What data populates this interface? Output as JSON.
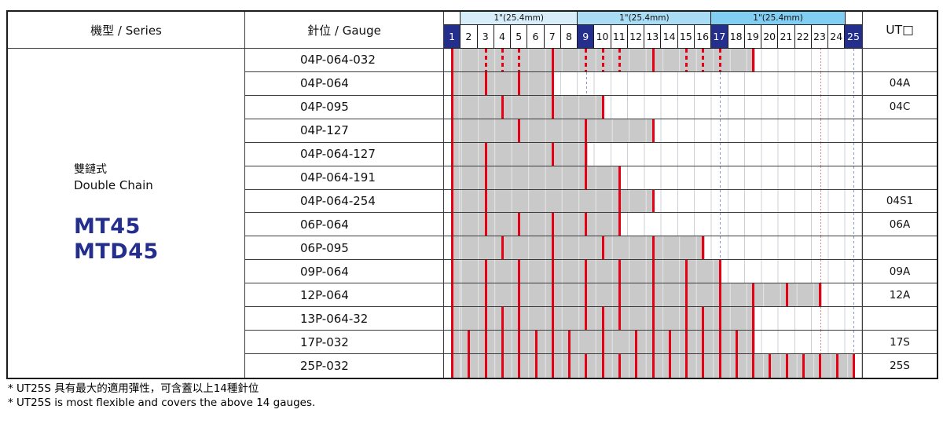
{
  "colors": {
    "navy": "#242e8c",
    "red": "#e60014",
    "bar_gray": "#c9c9c9",
    "guide_blue": "#8a94d0",
    "guide_red": "#dc8a8a",
    "gridline": "#ccd1d8",
    "band_light": "#d7eefa",
    "band_mid": "#a9dcf5",
    "band_dark": "#82cef2"
  },
  "table": {
    "series_header": "機型 / Series",
    "gauge_header": "針位 / Gauge",
    "ut_header": "UT□",
    "series_cell": {
      "type_zh": "雙鏈式",
      "type_en": "Double Chain",
      "model1": "MT45",
      "model2": "MTD45"
    }
  },
  "chart_data": {
    "type": "table",
    "title": "Needle gauge position chart",
    "scale": {
      "numbers": [
        "1",
        "2",
        "3",
        "4",
        "5",
        "6",
        "7",
        "8",
        "9",
        "10",
        "11",
        "12",
        "13",
        "14",
        "15",
        "16",
        "17",
        "18",
        "19",
        "20",
        "21",
        "22",
        "23",
        "24",
        "25"
      ],
      "highlighted": [
        1,
        9,
        17,
        25
      ],
      "bands": [
        {
          "label": "",
          "cols": 1,
          "color": "#ffffff"
        },
        {
          "label": "1\"(25.4mm)",
          "cols": 7,
          "color": "#d7eefa"
        },
        {
          "label": "1\"(25.4mm)",
          "cols": 8,
          "color": "#a9dcf5"
        },
        {
          "label": "1\"(25.4mm)",
          "cols": 8,
          "color": "#82cef2"
        },
        {
          "label": "",
          "cols": 1,
          "color": "#ffffff"
        }
      ]
    },
    "guides": {
      "blue_dashed": [
        9,
        17,
        25
      ],
      "red_dotted": [
        23
      ]
    },
    "rows": [
      {
        "gauge": "04P-064-032",
        "ut": "",
        "bar": [
          1,
          19
        ],
        "solid": [
          1,
          7,
          13,
          19
        ],
        "dashed": [
          3,
          4,
          5,
          9,
          10,
          11,
          15,
          16,
          17
        ]
      },
      {
        "gauge": "04P-064",
        "ut": "04A",
        "bar": [
          1,
          7
        ],
        "solid": [
          1,
          3,
          5,
          7
        ],
        "dashed": []
      },
      {
        "gauge": "04P-095",
        "ut": "04C",
        "bar": [
          1,
          10
        ],
        "solid": [
          1,
          4,
          7,
          10
        ],
        "dashed": []
      },
      {
        "gauge": "04P-127",
        "ut": "",
        "bar": [
          1,
          13
        ],
        "solid": [
          1,
          5,
          9,
          13
        ],
        "dashed": []
      },
      {
        "gauge": "04P-064-127",
        "ut": "",
        "bar": [
          1,
          9
        ],
        "solid": [
          1,
          3,
          7,
          9
        ],
        "dashed": []
      },
      {
        "gauge": "04P-064-191",
        "ut": "",
        "bar": [
          1,
          11
        ],
        "solid": [
          1,
          3,
          9,
          11
        ],
        "dashed": []
      },
      {
        "gauge": "04P-064-254",
        "ut": "04S1",
        "bar": [
          1,
          13
        ],
        "solid": [
          1,
          3,
          11,
          13
        ],
        "dashed": []
      },
      {
        "gauge": "06P-064",
        "ut": "06A",
        "bar": [
          1,
          11
        ],
        "solid": [
          1,
          3,
          5,
          7,
          9,
          11
        ],
        "dashed": []
      },
      {
        "gauge": "06P-095",
        "ut": "",
        "bar": [
          1,
          16
        ],
        "solid": [
          1,
          4,
          7,
          10,
          13,
          16
        ],
        "dashed": []
      },
      {
        "gauge": "09P-064",
        "ut": "09A",
        "bar": [
          1,
          17
        ],
        "solid": [
          1,
          3,
          5,
          7,
          9,
          11,
          13,
          15,
          17
        ],
        "dashed": []
      },
      {
        "gauge": "12P-064",
        "ut": "12A",
        "bar": [
          1,
          23
        ],
        "solid": [
          1,
          3,
          5,
          7,
          9,
          11,
          13,
          15,
          17,
          19,
          21,
          23
        ],
        "dashed": []
      },
      {
        "gauge": "13P-064-32",
        "ut": "",
        "bar": [
          1,
          19
        ],
        "solid": [
          1,
          3,
          4,
          5,
          7,
          9,
          10,
          11,
          13,
          15,
          16,
          17,
          19
        ],
        "dashed": []
      },
      {
        "gauge": "17P-032",
        "ut": "17S",
        "bar": [
          1,
          19
        ],
        "solid": [
          1,
          2,
          3,
          4,
          5,
          6,
          7,
          8,
          10,
          12,
          13,
          14,
          15,
          16,
          17,
          18,
          19
        ],
        "dashed": []
      },
      {
        "gauge": "25P-032",
        "ut": "25S",
        "bar": [
          1,
          25
        ],
        "solid": [
          1,
          2,
          3,
          4,
          5,
          6,
          7,
          8,
          9,
          10,
          11,
          12,
          13,
          14,
          15,
          16,
          17,
          18,
          19,
          20,
          21,
          22,
          23,
          24,
          25
        ],
        "dashed": []
      }
    ]
  },
  "footnotes": [
    "* UT25S 具有最大的適用彈性，可含蓋以上14種針位",
    "* UT25S is most flexible and covers the above 14 gauges."
  ]
}
